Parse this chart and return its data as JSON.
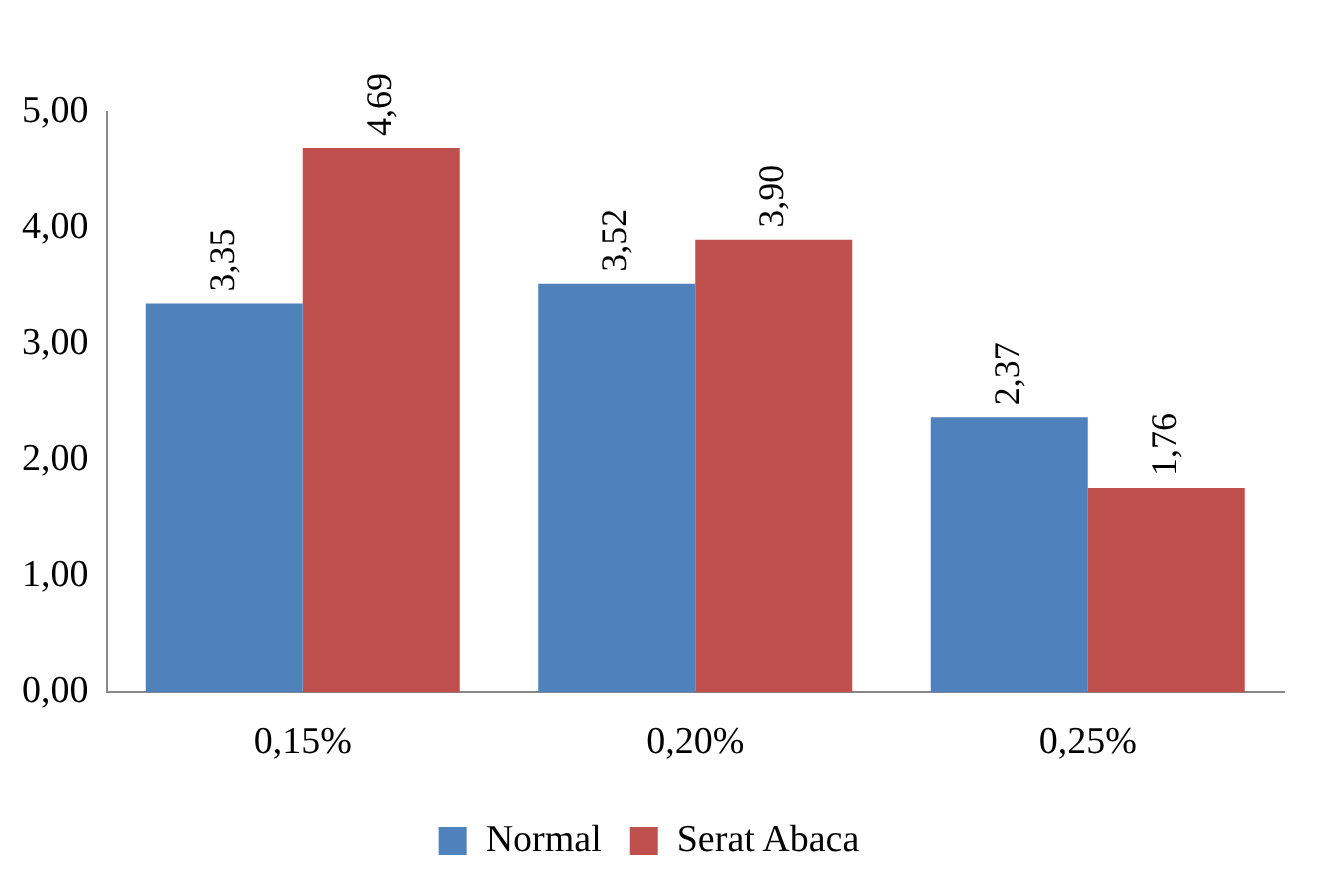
{
  "chart_data": {
    "type": "bar",
    "categories": [
      "0,15%",
      "0,20%",
      "0,25%"
    ],
    "series": [
      {
        "name": "Normal",
        "color": "#4f81bd",
        "values": [
          3.35,
          3.52,
          2.37
        ],
        "value_labels": [
          "3,35",
          "3,52",
          "2,37"
        ]
      },
      {
        "name": "Serat Abaca",
        "color": "#c0504d",
        "values": [
          4.69,
          3.9,
          1.76
        ],
        "value_labels": [
          "4,69",
          "3,90",
          "1,76"
        ]
      }
    ],
    "ylim": [
      0,
      5
    ],
    "yticks": [
      {
        "value": 0,
        "label": "0,00"
      },
      {
        "value": 1,
        "label": "1,00"
      },
      {
        "value": 2,
        "label": "2,00"
      },
      {
        "value": 3,
        "label": "3,00"
      },
      {
        "value": 4,
        "label": "4,00"
      },
      {
        "value": 5,
        "label": "5,00"
      }
    ],
    "grid": false,
    "legend": "bottom"
  }
}
